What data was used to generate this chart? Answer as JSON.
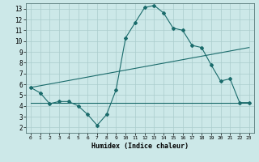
{
  "xlabel": "Humidex (Indice chaleur)",
  "bg_color": "#cce8e8",
  "grid_color": "#aacccc",
  "line_color": "#1a6b6b",
  "xlim": [
    -0.5,
    23.5
  ],
  "ylim": [
    1.5,
    13.5
  ],
  "xticks": [
    0,
    1,
    2,
    3,
    4,
    5,
    6,
    7,
    8,
    9,
    10,
    11,
    12,
    13,
    14,
    15,
    16,
    17,
    18,
    19,
    20,
    21,
    22,
    23
  ],
  "yticks": [
    2,
    3,
    4,
    5,
    6,
    7,
    8,
    9,
    10,
    11,
    12,
    13
  ],
  "line1_x": [
    0,
    1,
    2,
    3,
    4,
    5,
    6,
    7,
    8,
    9,
    10,
    11,
    12,
    13,
    14,
    15,
    16,
    17,
    18,
    19,
    20,
    21,
    22,
    23
  ],
  "line1_y": [
    5.7,
    5.2,
    4.2,
    4.4,
    4.4,
    4.0,
    3.2,
    2.2,
    3.2,
    5.5,
    10.3,
    11.7,
    13.1,
    13.3,
    12.6,
    11.2,
    11.0,
    9.6,
    9.4,
    7.8,
    6.3,
    6.5,
    4.3,
    4.3
  ],
  "line2_x": [
    0,
    23
  ],
  "line2_y": [
    4.3,
    4.3
  ],
  "line3_x": [
    0,
    23
  ],
  "line3_y": [
    5.7,
    9.4
  ]
}
